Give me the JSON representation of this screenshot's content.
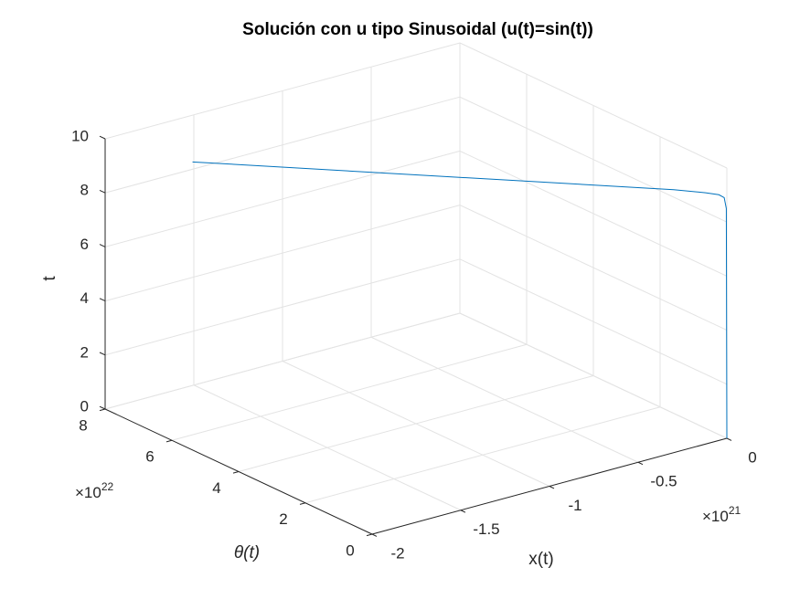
{
  "chart_data": {
    "type": "line3d",
    "title": "Solución con u tipo Sinusoidal (u(t)=sin(t))",
    "xlabel": "x(t)",
    "ylabel": "θ(t)",
    "zlabel": "t",
    "x_multiplier": {
      "base": "×10",
      "exponent": "21"
    },
    "y_multiplier": {
      "base": "×10",
      "exponent": "22"
    },
    "xlim": [
      -2e+21,
      0
    ],
    "ylim": [
      0,
      8e+22
    ],
    "zlim": [
      0,
      10
    ],
    "xticks": [
      {
        "value": -2e+21,
        "label": "-2"
      },
      {
        "value": -1.5e+21,
        "label": "-1.5"
      },
      {
        "value": -1e+21,
        "label": "-1"
      },
      {
        "value": -5e+20,
        "label": "-0.5"
      },
      0
    ],
    "yticks": [
      0,
      {
        "value": 2e+22,
        "label": "2"
      },
      {
        "value": 4e+22,
        "label": "4"
      },
      {
        "value": 6e+22,
        "label": "6"
      },
      {
        "value": 8e+22,
        "label": "8"
      }
    ],
    "zticks": [
      0,
      2,
      4,
      6,
      8,
      10
    ],
    "grid": true,
    "series": [
      {
        "color": "#0072bd",
        "x": [
          0,
          -1.7e+18,
          -8.6e+18,
          -2.6e+19,
          -6.9e+19,
          -1.7e+20,
          -6.9e+20,
          -1.72e+21
        ],
        "y": [
          0,
          6.9e+19,
          3.4e+20,
          1e+21,
          2.7e+21,
          6.9e+21,
          2.7e+22,
          6.87e+22
        ],
        "z": [
          0,
          8.5,
          8.9,
          9.0,
          9.05,
          9.1,
          9.2,
          9.3
        ]
      }
    ]
  }
}
